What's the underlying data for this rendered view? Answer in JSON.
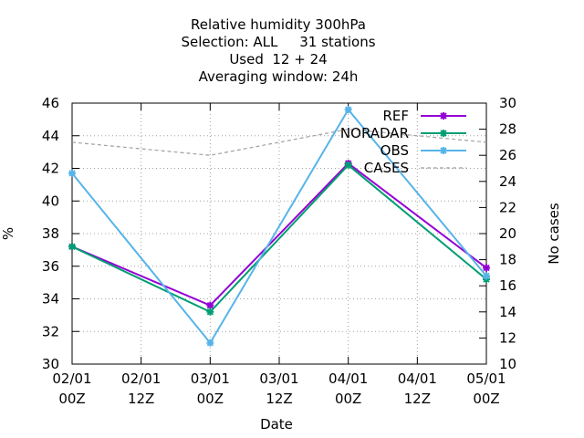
{
  "chart_data": {
    "type": "line",
    "title_lines": [
      "Relative humidity 300hPa",
      "Selection: ALL     31 stations",
      "Used  12 + 24",
      "Averaging window: 24h"
    ],
    "xlabel": "Date",
    "ylabel": "%",
    "y2label": "No cases",
    "categories": [
      [
        "02/01",
        "00Z"
      ],
      [
        "02/01",
        "12Z"
      ],
      [
        "03/01",
        "00Z"
      ],
      [
        "03/01",
        "12Z"
      ],
      [
        "04/01",
        "00Z"
      ],
      [
        "04/01",
        "12Z"
      ],
      [
        "05/01",
        "00Z"
      ]
    ],
    "ylim": [
      30,
      46
    ],
    "yticks": [
      30,
      32,
      34,
      36,
      38,
      40,
      42,
      44,
      46
    ],
    "y2lim": [
      10,
      30
    ],
    "y2ticks": [
      10,
      12,
      14,
      16,
      18,
      20,
      22,
      24,
      26,
      28,
      30
    ],
    "grid": true,
    "legend_position": "top-right",
    "series": [
      {
        "name": "REF",
        "axis": "y1",
        "color": "#9400d3",
        "x": [
          0,
          2,
          4,
          6
        ],
        "values": [
          37.2,
          33.6,
          42.3,
          35.9
        ]
      },
      {
        "name": "NORADAR",
        "axis": "y1",
        "color": "#009e73",
        "x": [
          0,
          2,
          4,
          6
        ],
        "values": [
          37.2,
          33.2,
          42.2,
          35.2
        ]
      },
      {
        "name": "OBS",
        "axis": "y1",
        "color": "#56b4e9",
        "x": [
          0,
          2,
          4,
          6
        ],
        "values": [
          41.7,
          31.3,
          45.6,
          35.4
        ]
      },
      {
        "name": "CASES",
        "axis": "y2",
        "color": "#a0a0a0",
        "dashed": true,
        "x": [
          0,
          2,
          4,
          6
        ],
        "values": [
          27.0,
          26.0,
          28.0,
          27.0
        ]
      }
    ]
  }
}
